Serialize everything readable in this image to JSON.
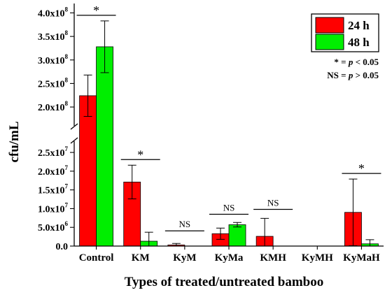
{
  "chart_data": {
    "type": "bar",
    "xlabel": "Types of treated/untreated bamboo",
    "ylabel": "cfu/mL",
    "categories": [
      "Control",
      "KM",
      "KyM",
      "KyMa",
      "KMH",
      "KyMH",
      "KyMaH"
    ],
    "series": [
      {
        "name": "24 h",
        "color": "#ff0000",
        "values": [
          224000000,
          17100000,
          300000,
          3300000,
          2600000,
          0,
          9000000
        ],
        "errors": [
          44000000,
          4500000,
          400000,
          1500000,
          4800000,
          0,
          8900000
        ]
      },
      {
        "name": "48 h",
        "color": "#00ee00",
        "values": [
          328000000,
          1300000,
          0,
          5700000,
          0,
          0,
          600000
        ],
        "errors": [
          55000000,
          2400000,
          0,
          600000,
          0,
          0,
          1100000
        ]
      }
    ],
    "y_axis_break": {
      "lower_range": [
        0,
        28000000
      ],
      "upper_range": [
        160000000,
        420000000
      ]
    },
    "lower_ticks": [
      {
        "mant": "0.0",
        "exp": ""
      },
      {
        "mant": "5.0x10",
        "exp": "6"
      },
      {
        "mant": "1.0x10",
        "exp": "7"
      },
      {
        "mant": "1.5x10",
        "exp": "7"
      },
      {
        "mant": "2.0x10",
        "exp": "7"
      },
      {
        "mant": "2.5x10",
        "exp": "7"
      }
    ],
    "upper_ticks": [
      {
        "mant": "2.0x10",
        "exp": "8"
      },
      {
        "mant": "2.5x10",
        "exp": "8"
      },
      {
        "mant": "3.0x10",
        "exp": "8"
      },
      {
        "mant": "3.5x10",
        "exp": "8"
      },
      {
        "mant": "4.0x10",
        "exp": "8"
      }
    ],
    "significance": [
      {
        "category": "Control",
        "label": "*"
      },
      {
        "category": "KM",
        "label": "*"
      },
      {
        "category": "KyM",
        "label": "NS"
      },
      {
        "category": "KyMa",
        "label": "NS"
      },
      {
        "category": "KMH",
        "label": "NS"
      },
      {
        "category": "KyMaH",
        "label": "*"
      }
    ],
    "legend": {
      "placement": "top-right",
      "entries": [
        "24 h",
        "48 h"
      ]
    },
    "notes": {
      "star_prefix": "* = ",
      "star_p": "p",
      "star_rest": " < 0.05",
      "ns_prefix": "NS = ",
      "ns_p": "p",
      "ns_rest": " > 0.05"
    },
    "grid": false
  }
}
